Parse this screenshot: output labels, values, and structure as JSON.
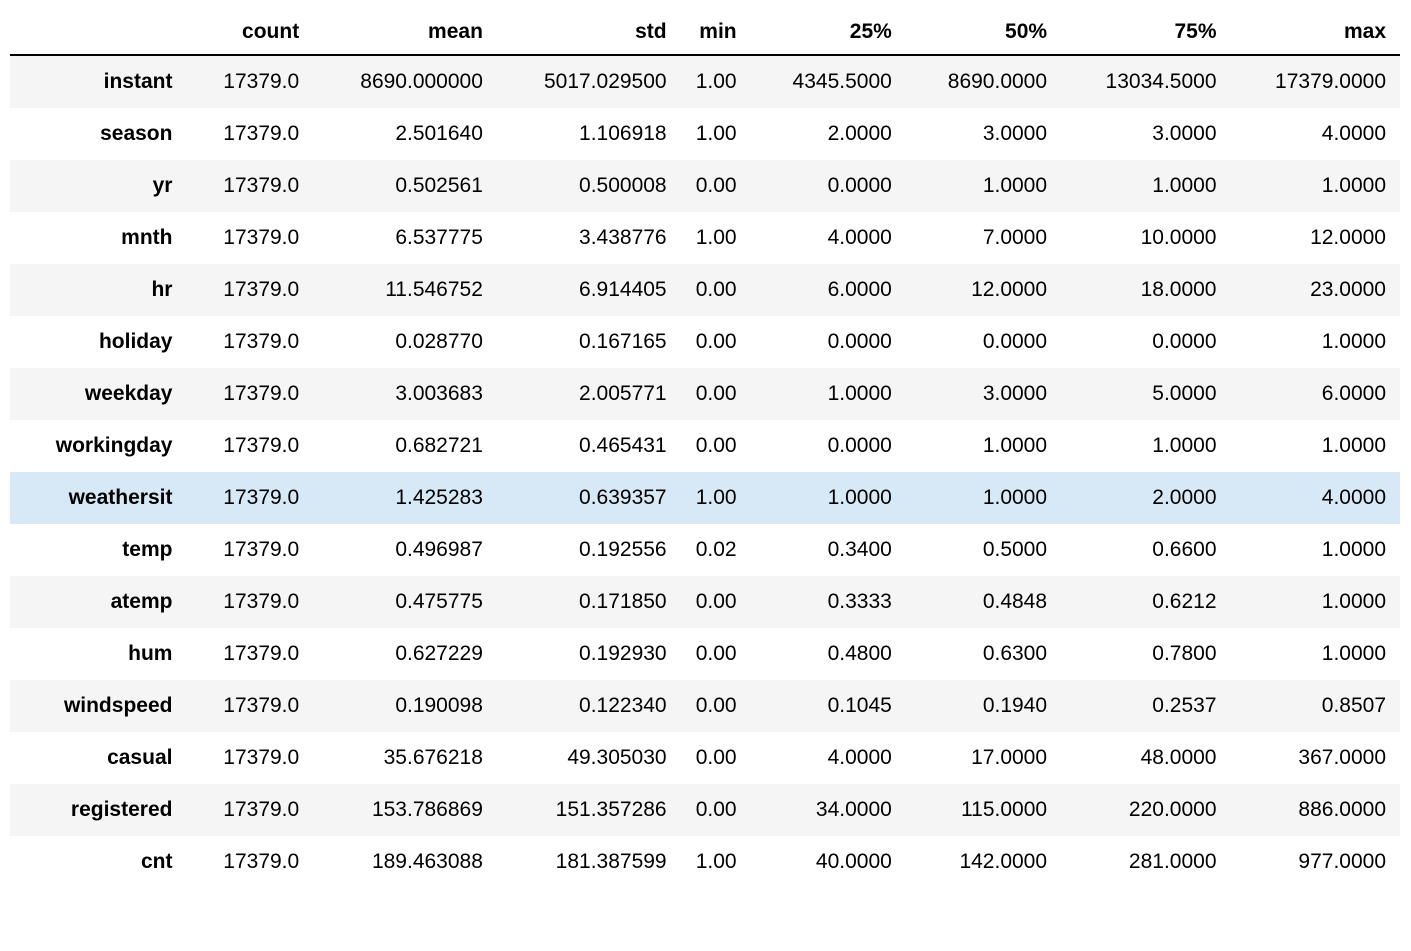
{
  "table": {
    "type": "table",
    "background_color": "#ffffff",
    "stripe_color": "#f5f5f5",
    "highlight_color": "#d7e9f7",
    "header_border_color": "#000000",
    "text_color": "#000000",
    "font_size_pt": 16,
    "header_font_weight": 700,
    "row_label_font_weight": 700,
    "cell_align": "right",
    "highlighted_row_index": 8,
    "columns": [
      "count",
      "mean",
      "std",
      "min",
      "25%",
      "50%",
      "75%",
      "max"
    ],
    "row_labels": [
      "instant",
      "season",
      "yr",
      "mnth",
      "hr",
      "holiday",
      "weekday",
      "workingday",
      "weathersit",
      "temp",
      "atemp",
      "hum",
      "windspeed",
      "casual",
      "registered",
      "cnt"
    ],
    "rows": [
      [
        "17379.0",
        "8690.000000",
        "5017.029500",
        "1.00",
        "4345.5000",
        "8690.0000",
        "13034.5000",
        "17379.0000"
      ],
      [
        "17379.0",
        "2.501640",
        "1.106918",
        "1.00",
        "2.0000",
        "3.0000",
        "3.0000",
        "4.0000"
      ],
      [
        "17379.0",
        "0.502561",
        "0.500008",
        "0.00",
        "0.0000",
        "1.0000",
        "1.0000",
        "1.0000"
      ],
      [
        "17379.0",
        "6.537775",
        "3.438776",
        "1.00",
        "4.0000",
        "7.0000",
        "10.0000",
        "12.0000"
      ],
      [
        "17379.0",
        "11.546752",
        "6.914405",
        "0.00",
        "6.0000",
        "12.0000",
        "18.0000",
        "23.0000"
      ],
      [
        "17379.0",
        "0.028770",
        "0.167165",
        "0.00",
        "0.0000",
        "0.0000",
        "0.0000",
        "1.0000"
      ],
      [
        "17379.0",
        "3.003683",
        "2.005771",
        "0.00",
        "1.0000",
        "3.0000",
        "5.0000",
        "6.0000"
      ],
      [
        "17379.0",
        "0.682721",
        "0.465431",
        "0.00",
        "0.0000",
        "1.0000",
        "1.0000",
        "1.0000"
      ],
      [
        "17379.0",
        "1.425283",
        "0.639357",
        "1.00",
        "1.0000",
        "1.0000",
        "2.0000",
        "4.0000"
      ],
      [
        "17379.0",
        "0.496987",
        "0.192556",
        "0.02",
        "0.3400",
        "0.5000",
        "0.6600",
        "1.0000"
      ],
      [
        "17379.0",
        "0.475775",
        "0.171850",
        "0.00",
        "0.3333",
        "0.4848",
        "0.6212",
        "1.0000"
      ],
      [
        "17379.0",
        "0.627229",
        "0.192930",
        "0.00",
        "0.4800",
        "0.6300",
        "0.7800",
        "1.0000"
      ],
      [
        "17379.0",
        "0.190098",
        "0.122340",
        "0.00",
        "0.1045",
        "0.1940",
        "0.2537",
        "0.8507"
      ],
      [
        "17379.0",
        "35.676218",
        "49.305030",
        "0.00",
        "4.0000",
        "17.0000",
        "48.0000",
        "367.0000"
      ],
      [
        "17379.0",
        "153.786869",
        "151.357286",
        "0.00",
        "34.0000",
        "115.0000",
        "220.0000",
        "886.0000"
      ],
      [
        "17379.0",
        "189.463088",
        "181.387599",
        "1.00",
        "40.0000",
        "142.0000",
        "281.0000",
        "977.0000"
      ]
    ]
  }
}
